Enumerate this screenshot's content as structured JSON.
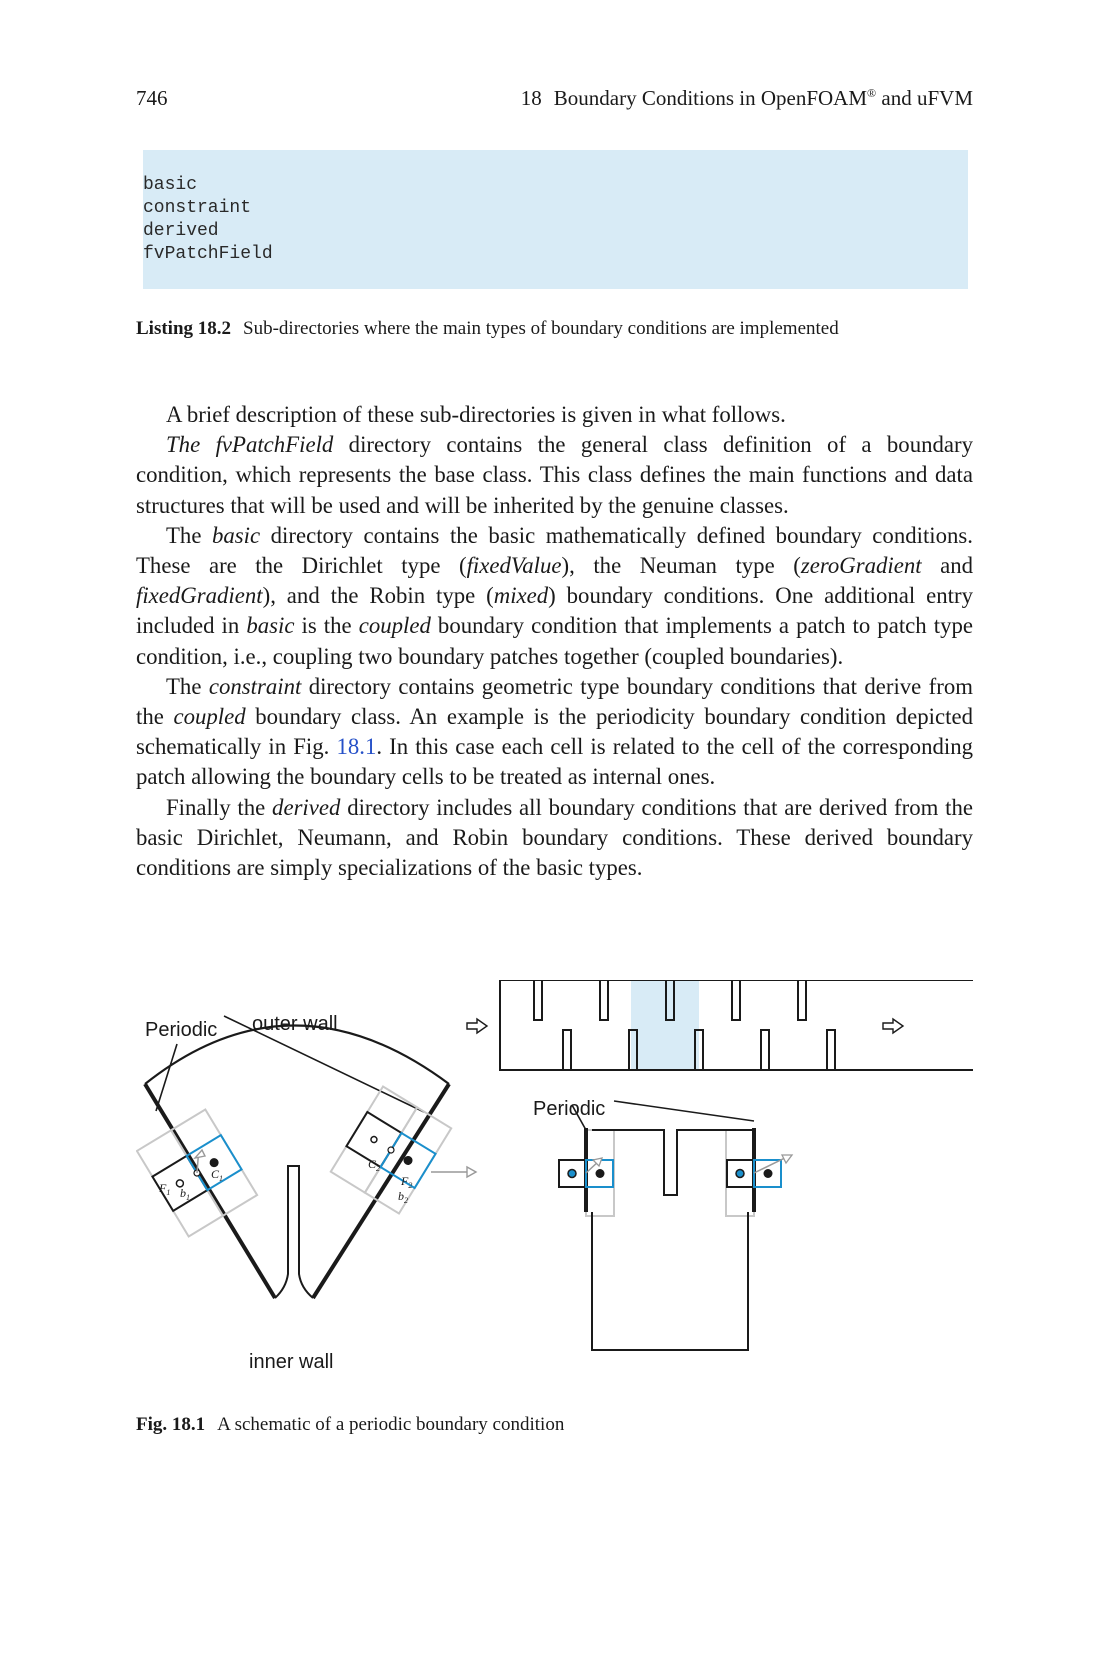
{
  "header": {
    "page_number": "746",
    "chapter_number": "18",
    "chapter_title": "Boundary Conditions in OpenFOAM",
    "registered_mark": "®",
    "chapter_title_suffix": " and uFVM"
  },
  "listing": {
    "lines": [
      "basic",
      "constraint",
      "derived",
      "fvPatchField"
    ],
    "caption_label": "Listing 18.2",
    "caption_text": "Sub-directories where the main types of boundary conditions are implemented"
  },
  "body": {
    "p1": "A brief description of these sub-directories is given in what follows.",
    "p2": {
      "term": "The fvPatchField",
      "text": " directory contains the general class definition of a boundary condition, which represents the base class. This class defines the main functions and data structures that will be used and will be inherited by the genuine classes."
    },
    "p3": {
      "a": "The ",
      "term1": "basic",
      "b": " directory contains the basic mathematically defined boundary con­ditions. These are the Dirichlet type (",
      "term2": "fixedValue",
      "c": "), the Neuman type (",
      "term3": "zeroGradient",
      "d": " and ",
      "term4": "fixedGradient",
      "e": "), and the Robin type (",
      "term5": "mixed",
      "f": ") boundary conditions. One addi­tional entry included in ",
      "term6": "basic",
      "g": " is the ",
      "term7": "coupled",
      "h": " boundary condition that implements a patch to patch type condition, i.e., coupling two boundary patches together (coupled boundaries)."
    },
    "p4": {
      "a": "The ",
      "term1": "constraint",
      "b": " directory contains geometric type boundary conditions that derive from the ",
      "term2": "coupled",
      "c": " boundary class. An example is the periodicity boundary condition depicted schematically in Fig. ",
      "ref": "18.1",
      "d": ". In this case each cell is related to the cell of the corresponding patch allowing the boundary cells to be treated as internal ones."
    },
    "p5": {
      "a": "Finally the ",
      "term1": "derived",
      "b": " directory includes all boundary conditions that are derived from the basic Dirichlet, Neumann, and Robin boundary conditions. These derived boundary conditions are simply specializations of the basic types."
    }
  },
  "figure": {
    "labels": {
      "periodic_left": "Periodic",
      "outer_wall": "outer wall",
      "inner_wall": "inner wall",
      "periodic_right": "Periodic",
      "F1": "F",
      "F1_sub": "1",
      "b1": "b",
      "b1_sub": "1",
      "C1": "C",
      "C1_sub": "1",
      "C2": "C",
      "C2_sub": "2",
      "F2": "F",
      "F2_sub": "2",
      "b2": "b",
      "b2_sub": "2"
    },
    "colors": {
      "accent": "#1a8fcc",
      "highlight": "#d8ebf6",
      "gray": "#999999",
      "ink": "#1a1a1a"
    },
    "caption_label": "Fig. 18.1",
    "caption_text": "A schematic of a periodic boundary condition"
  }
}
